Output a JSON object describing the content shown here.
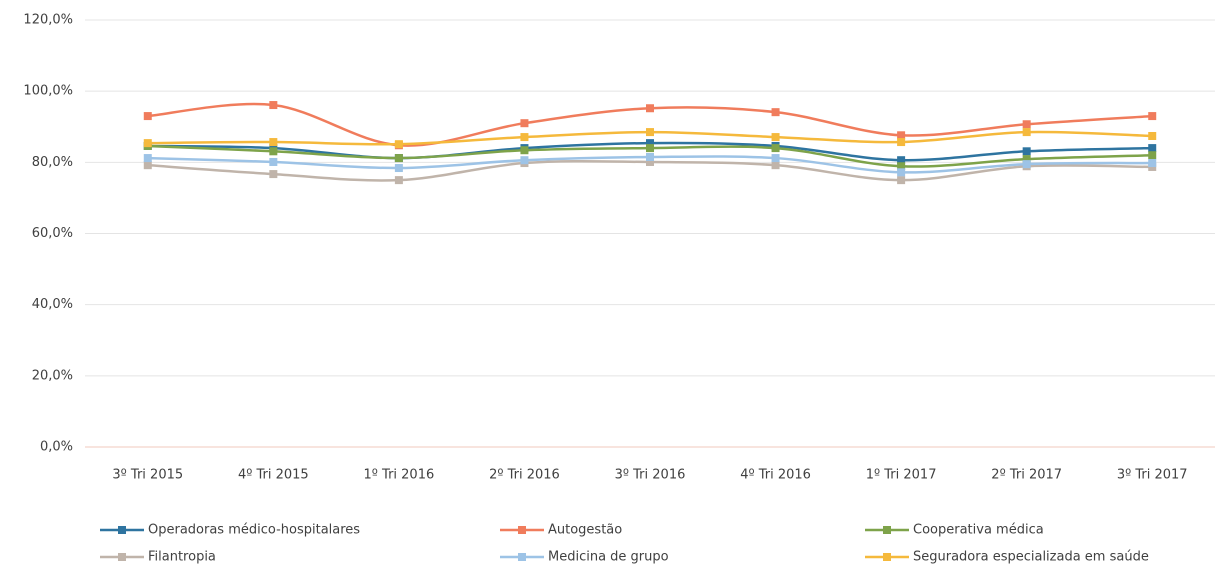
{
  "chart_data": {
    "type": "line",
    "categories": [
      "3º Tri 2015",
      "4º Tri 2015",
      "1º Tri 2016",
      "2º Tri 2016",
      "3º Tri 2016",
      "4º Tri 2016",
      "1º Tri 2017",
      "2º Tri 2017",
      "3º Tri 2017"
    ],
    "series": [
      {
        "name": "Operadoras médico-hospitalares",
        "color": "#2e74a0",
        "values": [
          84.6,
          84.0,
          81.2,
          84.0,
          85.4,
          84.6,
          80.6,
          83.1,
          84.0
        ]
      },
      {
        "name": "Autogestão",
        "color": "#f07c5c",
        "values": [
          93.0,
          96.1,
          84.8,
          91.0,
          95.2,
          94.1,
          87.6,
          90.7,
          93.0
        ]
      },
      {
        "name": "Cooperativa médica",
        "color": "#7ea34a",
        "values": [
          84.6,
          83.1,
          81.2,
          83.4,
          84.0,
          84.0,
          78.9,
          80.9,
          82.0
        ]
      },
      {
        "name": "Filantropia",
        "color": "#c0b4aa",
        "values": [
          79.2,
          76.7,
          75.0,
          79.8,
          80.1,
          79.2,
          75.0,
          78.9,
          78.7
        ]
      },
      {
        "name": "Medicina de grupo",
        "color": "#9dc3e6",
        "values": [
          81.2,
          80.1,
          78.4,
          80.6,
          81.5,
          81.2,
          77.2,
          79.5,
          79.8
        ]
      },
      {
        "name": "Seguradora especializada em saúde",
        "color": "#f5b93c",
        "values": [
          85.4,
          85.7,
          85.1,
          87.1,
          88.5,
          87.1,
          85.7,
          88.5,
          87.4
        ]
      }
    ],
    "ylim": [
      0,
      120
    ],
    "yticks": [
      {
        "value": 0,
        "label": "0,0%"
      },
      {
        "value": 20,
        "label": "20,0%"
      },
      {
        "value": 40,
        "label": "40,0%"
      },
      {
        "value": 60,
        "label": "60,0%"
      },
      {
        "value": 80,
        "label": "80,0%"
      },
      {
        "value": 100,
        "label": "100,0%"
      },
      {
        "value": 120,
        "label": "120,0%"
      }
    ],
    "grid": true,
    "legend": "bottom"
  }
}
